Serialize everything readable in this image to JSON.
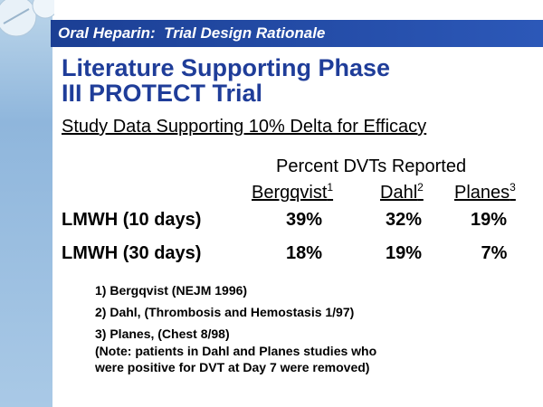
{
  "header": {
    "section": "Oral Heparin:  Trial Design Rationale",
    "title": [
      "Literature Supporting Phase",
      "III PROTECT Trial"
    ],
    "subtitle": "Study Data Supporting 10% Delta for Efficacy"
  },
  "table": {
    "caption": "Percent DVTs Reported",
    "columns": [
      {
        "name": "Bergqvist",
        "ref": "1"
      },
      {
        "name": "Dahl",
        "ref": "2"
      },
      {
        "name": "Planes",
        "ref": "3"
      }
    ],
    "rows": [
      {
        "label": "LMWH (10 days)",
        "cells": [
          "39%",
          "32%",
          "19%"
        ]
      },
      {
        "label": "LMWH (30 days)",
        "cells": [
          "18%",
          "19%",
          "7%"
        ]
      }
    ]
  },
  "footnotes": [
    "1) Bergqvist (NEJM 1996)",
    "2) Dahl, (Thrombosis and Hemostasis 1/97)",
    "3) Planes, (Chest 8/98)",
    "(Note: patients in Dahl and Planes studies who",
    "were positive for DVT at Day 7 were removed)"
  ]
}
